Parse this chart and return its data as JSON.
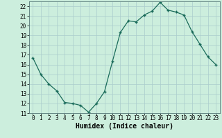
{
  "x": [
    0,
    1,
    2,
    3,
    4,
    5,
    6,
    7,
    8,
    9,
    10,
    11,
    12,
    13,
    14,
    15,
    16,
    17,
    18,
    19,
    20,
    21,
    22,
    23
  ],
  "y": [
    16.7,
    15.0,
    14.0,
    13.3,
    12.1,
    12.0,
    11.8,
    11.1,
    12.0,
    13.2,
    16.3,
    19.3,
    20.5,
    20.4,
    21.1,
    21.5,
    22.4,
    21.6,
    21.4,
    21.1,
    19.4,
    18.1,
    16.8,
    16.0
  ],
  "xlabel": "Humidex (Indice chaleur)",
  "xlim": [
    -0.5,
    23.5
  ],
  "ylim": [
    11,
    22.5
  ],
  "yticks": [
    11,
    12,
    13,
    14,
    15,
    16,
    17,
    18,
    19,
    20,
    21,
    22
  ],
  "xticks": [
    0,
    1,
    2,
    3,
    4,
    5,
    6,
    7,
    8,
    9,
    10,
    11,
    12,
    13,
    14,
    15,
    16,
    17,
    18,
    19,
    20,
    21,
    22,
    23
  ],
  "line_color": "#1a6b5a",
  "marker": "+",
  "bg_color": "#cceedd",
  "grid_color": "#aacccc",
  "axis_fontsize": 6.5,
  "tick_fontsize": 5.5,
  "xlabel_fontsize": 7.0
}
